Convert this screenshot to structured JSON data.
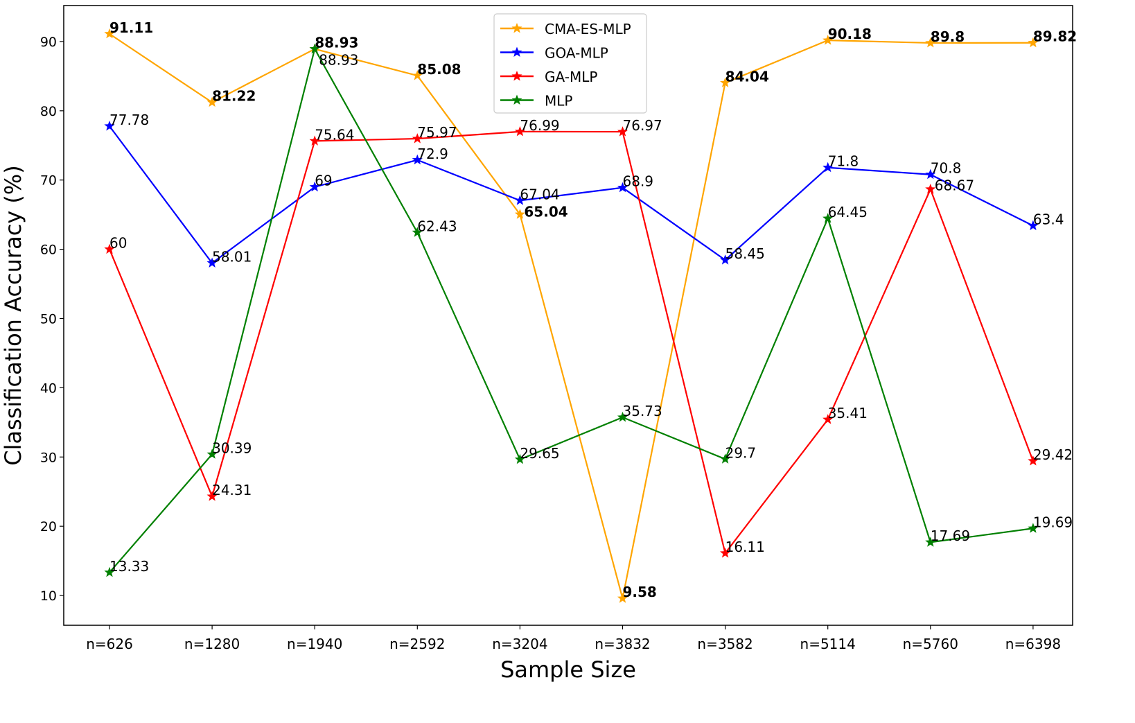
{
  "chart_data": {
    "type": "line",
    "title": "",
    "xlabel": "Sample Size",
    "ylabel": "Classification Accuracy (%)",
    "categories": [
      "n=626",
      "n=1280",
      "n=1940",
      "n=2592",
      "n=3204",
      "n=3832",
      "n=3582",
      "n=5114",
      "n=5760",
      "n=6398"
    ],
    "ylim": [
      5.7,
      95.2
    ],
    "yticks": [
      10,
      20,
      30,
      40,
      50,
      60,
      70,
      80,
      90
    ],
    "grid": false,
    "legend": "top-center",
    "marker": "star",
    "series": [
      {
        "name": "CMA-ES-MLP",
        "color": "#FFA500",
        "values": [
          91.11,
          81.22,
          88.93,
          85.08,
          65.04,
          9.58,
          84.04,
          90.18,
          89.8,
          89.82
        ]
      },
      {
        "name": "GOA-MLP",
        "color": "#0000FF",
        "values": [
          77.78,
          58.01,
          69,
          72.9,
          67.04,
          68.9,
          58.45,
          71.8,
          70.8,
          63.4
        ]
      },
      {
        "name": "GA-MLP",
        "color": "#FF0000",
        "values": [
          60,
          24.31,
          75.64,
          75.97,
          76.99,
          76.97,
          16.11,
          35.41,
          68.67,
          29.42
        ]
      },
      {
        "name": "MLP",
        "color": "#008000",
        "values": [
          13.33,
          30.39,
          88.93,
          62.43,
          29.65,
          35.73,
          29.7,
          64.45,
          17.69,
          19.69
        ]
      }
    ]
  }
}
